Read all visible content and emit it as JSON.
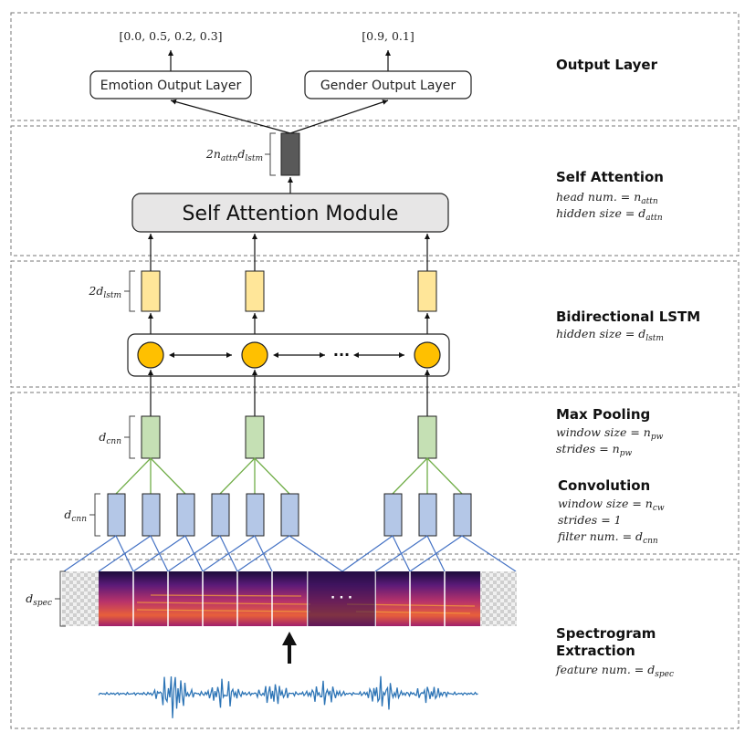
{
  "output_layer": {
    "title": "Output Layer",
    "emotion_box": "Emotion Output Layer",
    "gender_box": "Gender Output Layer",
    "emotion_vector": "[0.0, 0.5, 0.2, 0.3]",
    "gender_vector": "[0.9, 0.1]"
  },
  "self_attention": {
    "title": "Self Attention",
    "module_label": "Self Attention Module",
    "output_dim": "2n_attn d_lstm",
    "param1": "head num. = n_attn",
    "param2": "hidden size = d_attn"
  },
  "bilstm": {
    "title": "Bidirectional LSTM",
    "param1": "hidden size = d_lstm",
    "output_dim": "2d_lstm",
    "ellipsis": "···"
  },
  "max_pooling": {
    "title": "Max Pooling",
    "param1": "window size = n_pw",
    "param2": "strides = n_pw",
    "dim": "d_cnn"
  },
  "convolution": {
    "title": "Convolution",
    "param1": "window size = n_cw",
    "param2": "strides = 1",
    "param3": "filter num. = d_cnn",
    "dim": "d_cnn"
  },
  "spectrogram": {
    "title_line1": "Spectrogram",
    "title_line2": "Extraction",
    "param1": "feature num. = d_spec",
    "dim": "d_spec",
    "ellipsis": "· · ·"
  },
  "colors": {
    "lstm_cell": "#FFC000",
    "lstm_out": "#FFE699",
    "pool": "#C5E0B4",
    "conv": "#B4C7E7",
    "attn_out": "#595959",
    "module_fill": "#E7E6E6",
    "waveform": "#2E75B6"
  }
}
